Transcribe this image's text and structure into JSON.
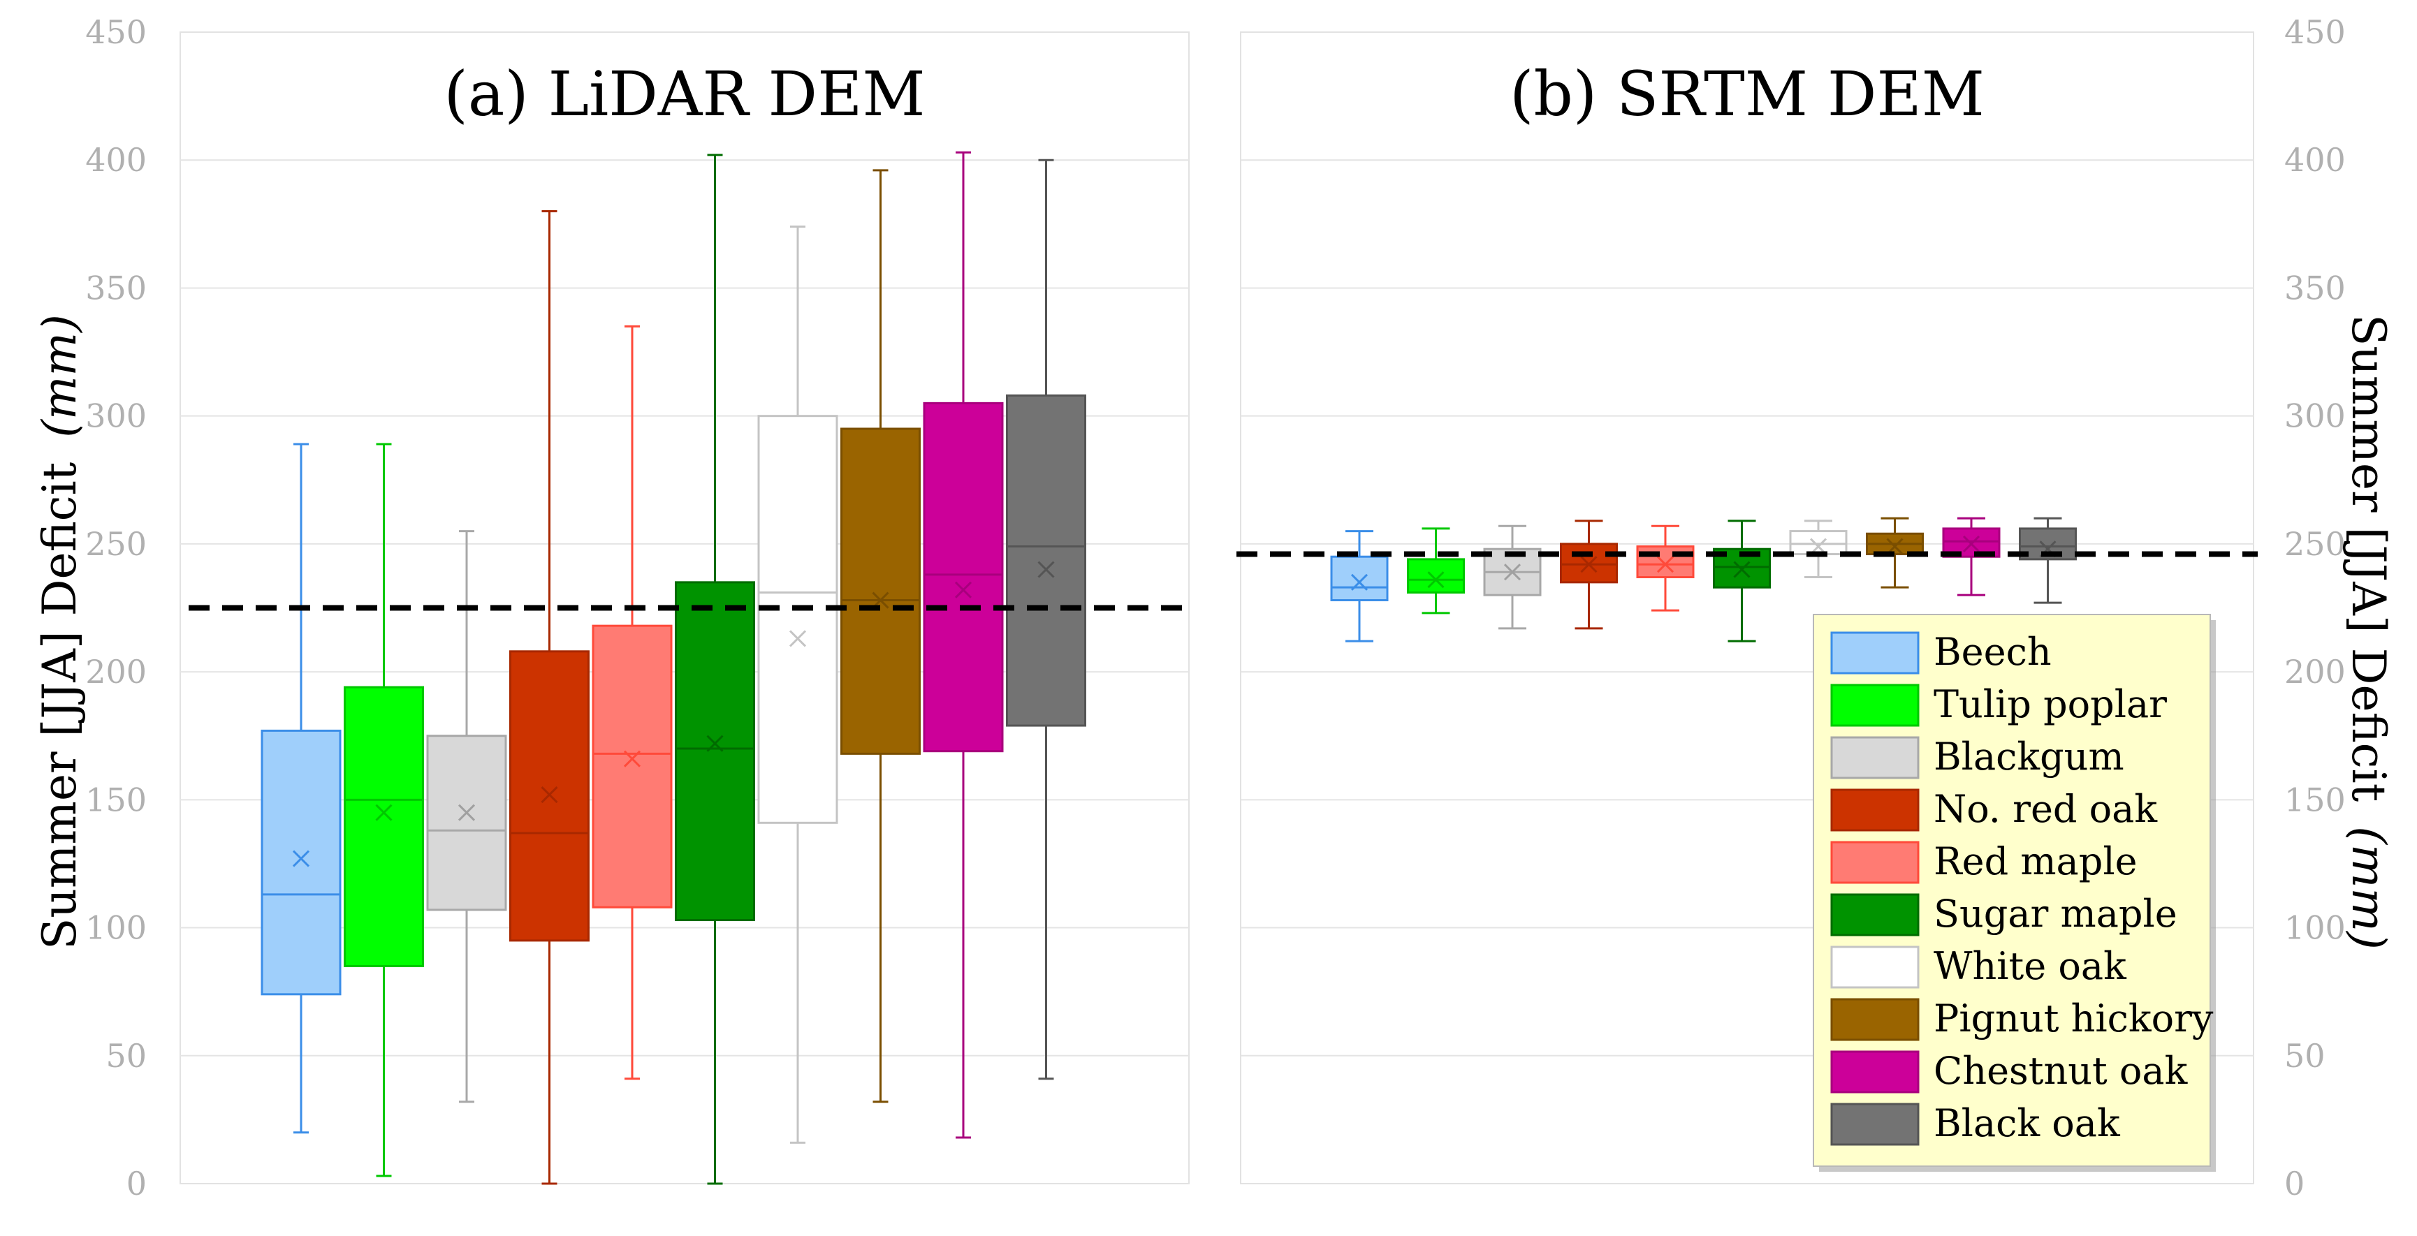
{
  "chart_data": [
    {
      "type": "box",
      "title": "(a) LiDAR DEM",
      "ylabel": "Summer [JJA] Deficit",
      "ylabel_unit": "(mm)",
      "ylim": [
        0,
        450
      ],
      "yticks": [
        "0",
        "50",
        "100",
        "150",
        "200",
        "250",
        "300",
        "350",
        "400",
        "450"
      ],
      "grid": true,
      "reference_line": 225,
      "series": [
        {
          "name": "Beech",
          "min": 20,
          "q1": 74,
          "median": 113,
          "mean": 127,
          "q3": 177,
          "max": 289
        },
        {
          "name": "Tulip poplar",
          "min": 3,
          "q1": 85,
          "median": 150,
          "mean": 145,
          "q3": 194,
          "max": 289
        },
        {
          "name": "Blackgum",
          "min": 32,
          "q1": 107,
          "median": 138,
          "mean": 145,
          "q3": 175,
          "max": 255
        },
        {
          "name": "No. red oak",
          "min": 0,
          "q1": 95,
          "median": 137,
          "mean": 152,
          "q3": 208,
          "max": 380
        },
        {
          "name": "Red maple",
          "min": 41,
          "q1": 108,
          "median": 168,
          "mean": 166,
          "q3": 218,
          "max": 335
        },
        {
          "name": "Sugar maple",
          "min": 0,
          "q1": 103,
          "median": 170,
          "mean": 172,
          "q3": 235,
          "max": 402
        },
        {
          "name": "White oak",
          "min": 16,
          "q1": 141,
          "median": 231,
          "mean": 213,
          "q3": 300,
          "max": 374
        },
        {
          "name": "Pignut hickory",
          "min": 32,
          "q1": 168,
          "median": 228,
          "mean": 228,
          "q3": 295,
          "max": 396
        },
        {
          "name": "Chestnut oak",
          "min": 18,
          "q1": 169,
          "median": 238,
          "mean": 232,
          "q3": 305,
          "max": 403
        },
        {
          "name": "Black oak",
          "min": 41,
          "q1": 179,
          "median": 249,
          "mean": 240,
          "q3": 308,
          "max": 400
        }
      ]
    },
    {
      "type": "box",
      "title": "(b) SRTM DEM",
      "ylabel": "Summer [JJA] Deficit",
      "ylabel_unit": "(mm)",
      "ylim": [
        0,
        450
      ],
      "yticks": [
        "0",
        "50",
        "100",
        "150",
        "200",
        "250",
        "300",
        "350",
        "400",
        "450"
      ],
      "grid": true,
      "reference_line": 246,
      "series": [
        {
          "name": "Beech",
          "min": 212,
          "q1": 228,
          "median": 233,
          "mean": 235,
          "q3": 245,
          "max": 255
        },
        {
          "name": "Tulip poplar",
          "min": 223,
          "q1": 231,
          "median": 236,
          "mean": 236,
          "q3": 244,
          "max": 256
        },
        {
          "name": "Blackgum",
          "min": 217,
          "q1": 230,
          "median": 239,
          "mean": 239,
          "q3": 248,
          "max": 257
        },
        {
          "name": "No. red oak",
          "min": 217,
          "q1": 235,
          "median": 242,
          "mean": 242,
          "q3": 250,
          "max": 259
        },
        {
          "name": "Red maple",
          "min": 224,
          "q1": 237,
          "median": 242,
          "mean": 242,
          "q3": 249,
          "max": 257
        },
        {
          "name": "Sugar maple",
          "min": 212,
          "q1": 233,
          "median": 241,
          "mean": 240,
          "q3": 248,
          "max": 259
        },
        {
          "name": "White oak",
          "min": 237,
          "q1": 246,
          "median": 250,
          "mean": 249,
          "q3": 255,
          "max": 259
        },
        {
          "name": "Pignut hickory",
          "min": 233,
          "q1": 246,
          "median": 250,
          "mean": 249,
          "q3": 254,
          "max": 260
        },
        {
          "name": "Chestnut oak",
          "min": 230,
          "q1": 245,
          "median": 251,
          "mean": 250,
          "q3": 256,
          "max": 260
        },
        {
          "name": "Black oak",
          "min": 227,
          "q1": 244,
          "median": 249,
          "mean": 248,
          "q3": 256,
          "max": 260
        }
      ]
    }
  ],
  "legend": {
    "placement": "bottom-right of panel (b)",
    "items": [
      {
        "label": "Beech",
        "fill": "#9fcffb",
        "stroke": "#3b8ee8"
      },
      {
        "label": "Tulip poplar",
        "fill": "#00ff00",
        "stroke": "#00c800"
      },
      {
        "label": "Blackgum",
        "fill": "#d8d8d8",
        "stroke": "#a8a8a8"
      },
      {
        "label": "No. red oak",
        "fill": "#cc3300",
        "stroke": "#a82800"
      },
      {
        "label": "Red maple",
        "fill": "#ff7b73",
        "stroke": "#ff4a3a"
      },
      {
        "label": "Sugar maple",
        "fill": "#009300",
        "stroke": "#006c00"
      },
      {
        "label": "White oak",
        "fill": "#ffffff",
        "stroke": "#c4c4c4"
      },
      {
        "label": "Pignut hickory",
        "fill": "#9a6400",
        "stroke": "#7a4e00"
      },
      {
        "label": "Chestnut oak",
        "fill": "#cc0099",
        "stroke": "#a8007d"
      },
      {
        "label": "Black oak",
        "fill": "#737373",
        "stroke": "#555555"
      }
    ],
    "background": "#ffffcc"
  }
}
